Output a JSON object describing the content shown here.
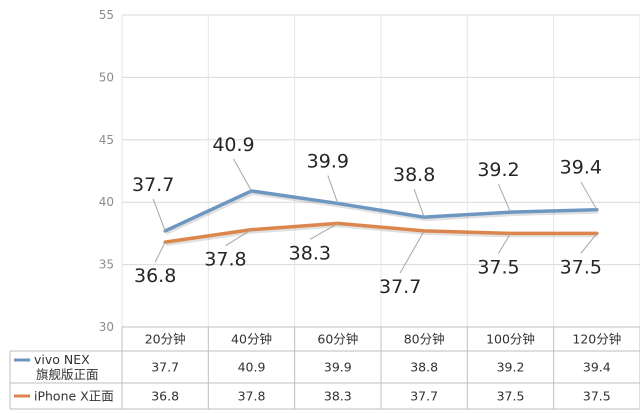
{
  "chart_data": {
    "type": "line",
    "categories": [
      "20分钟",
      "40分钟",
      "60分钟",
      "80分钟",
      "100分钟",
      "120分钟"
    ],
    "series": [
      {
        "name": "vivo NEX 旗舰版正面",
        "name_lines": [
          "vivo NEX",
          "旗舰版正面"
        ],
        "values": [
          37.7,
          40.9,
          39.9,
          38.8,
          39.2,
          39.4
        ],
        "labels": [
          "37.7",
          "40.9",
          "39.9",
          "38.8",
          "39.2",
          "39.4"
        ],
        "color": "#6d97c1"
      },
      {
        "name": "iPhone X正面",
        "name_lines": [
          "iPhone X正面"
        ],
        "values": [
          36.8,
          37.8,
          38.3,
          37.7,
          37.5,
          37.5
        ],
        "labels": [
          "36.8",
          "37.8",
          "38.3",
          "37.7",
          "37.5",
          "37.5"
        ],
        "color": "#dc864e"
      }
    ],
    "y_ticks": [
      "30",
      "35",
      "40",
      "45",
      "50",
      "55"
    ],
    "ylim": [
      30,
      55
    ],
    "grid": true,
    "legend": "data-table"
  }
}
